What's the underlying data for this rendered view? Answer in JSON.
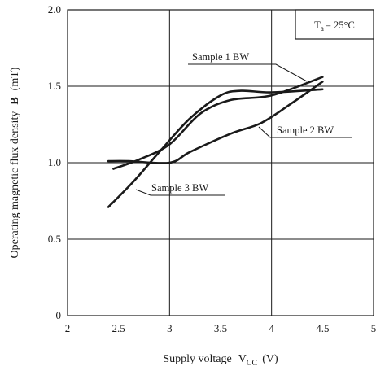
{
  "chart_data": {
    "type": "line",
    "xlabel": "Supply voltage",
    "xlabel_symbol": "V",
    "xlabel_subscript": "CC",
    "xlabel_unit": "(V)",
    "ylabel": "Operating magnetic flux density",
    "ylabel_symbol": "B",
    "ylabel_unit": "(mT)",
    "xlim": [
      2,
      5
    ],
    "ylim": [
      0,
      2.0
    ],
    "x_ticks": [
      2,
      2.5,
      3,
      3.5,
      4,
      4.5,
      5
    ],
    "x_tick_labels": [
      "2",
      "2.5",
      "3",
      "3.5",
      "4",
      "4.5",
      "5"
    ],
    "y_ticks": [
      0,
      0.5,
      1.0,
      1.5,
      2.0
    ],
    "y_tick_labels": [
      "0",
      "0.5",
      "1.0",
      "1.5",
      "2.0"
    ],
    "grid": true,
    "condition_box": {
      "symbol": "T",
      "subscript": "a",
      "value": "= 25°C"
    },
    "series": [
      {
        "name": "Sample 1  BW",
        "x": [
          2.45,
          2.7,
          3.0,
          3.3,
          3.6,
          4.0,
          4.5
        ],
        "y": [
          0.96,
          1.02,
          1.12,
          1.32,
          1.41,
          1.44,
          1.56
        ]
      },
      {
        "name": "Sample 2  BW",
        "x": [
          2.4,
          2.6,
          3.0,
          3.2,
          3.6,
          3.9,
          4.2,
          4.5
        ],
        "y": [
          1.01,
          1.01,
          1.0,
          1.07,
          1.19,
          1.26,
          1.39,
          1.53
        ]
      },
      {
        "name": "Sample 3  BW",
        "x": [
          2.4,
          2.65,
          2.9,
          3.2,
          3.5,
          3.7,
          4.0,
          4.5
        ],
        "y": [
          0.71,
          0.88,
          1.07,
          1.29,
          1.44,
          1.47,
          1.46,
          1.48
        ]
      }
    ]
  }
}
